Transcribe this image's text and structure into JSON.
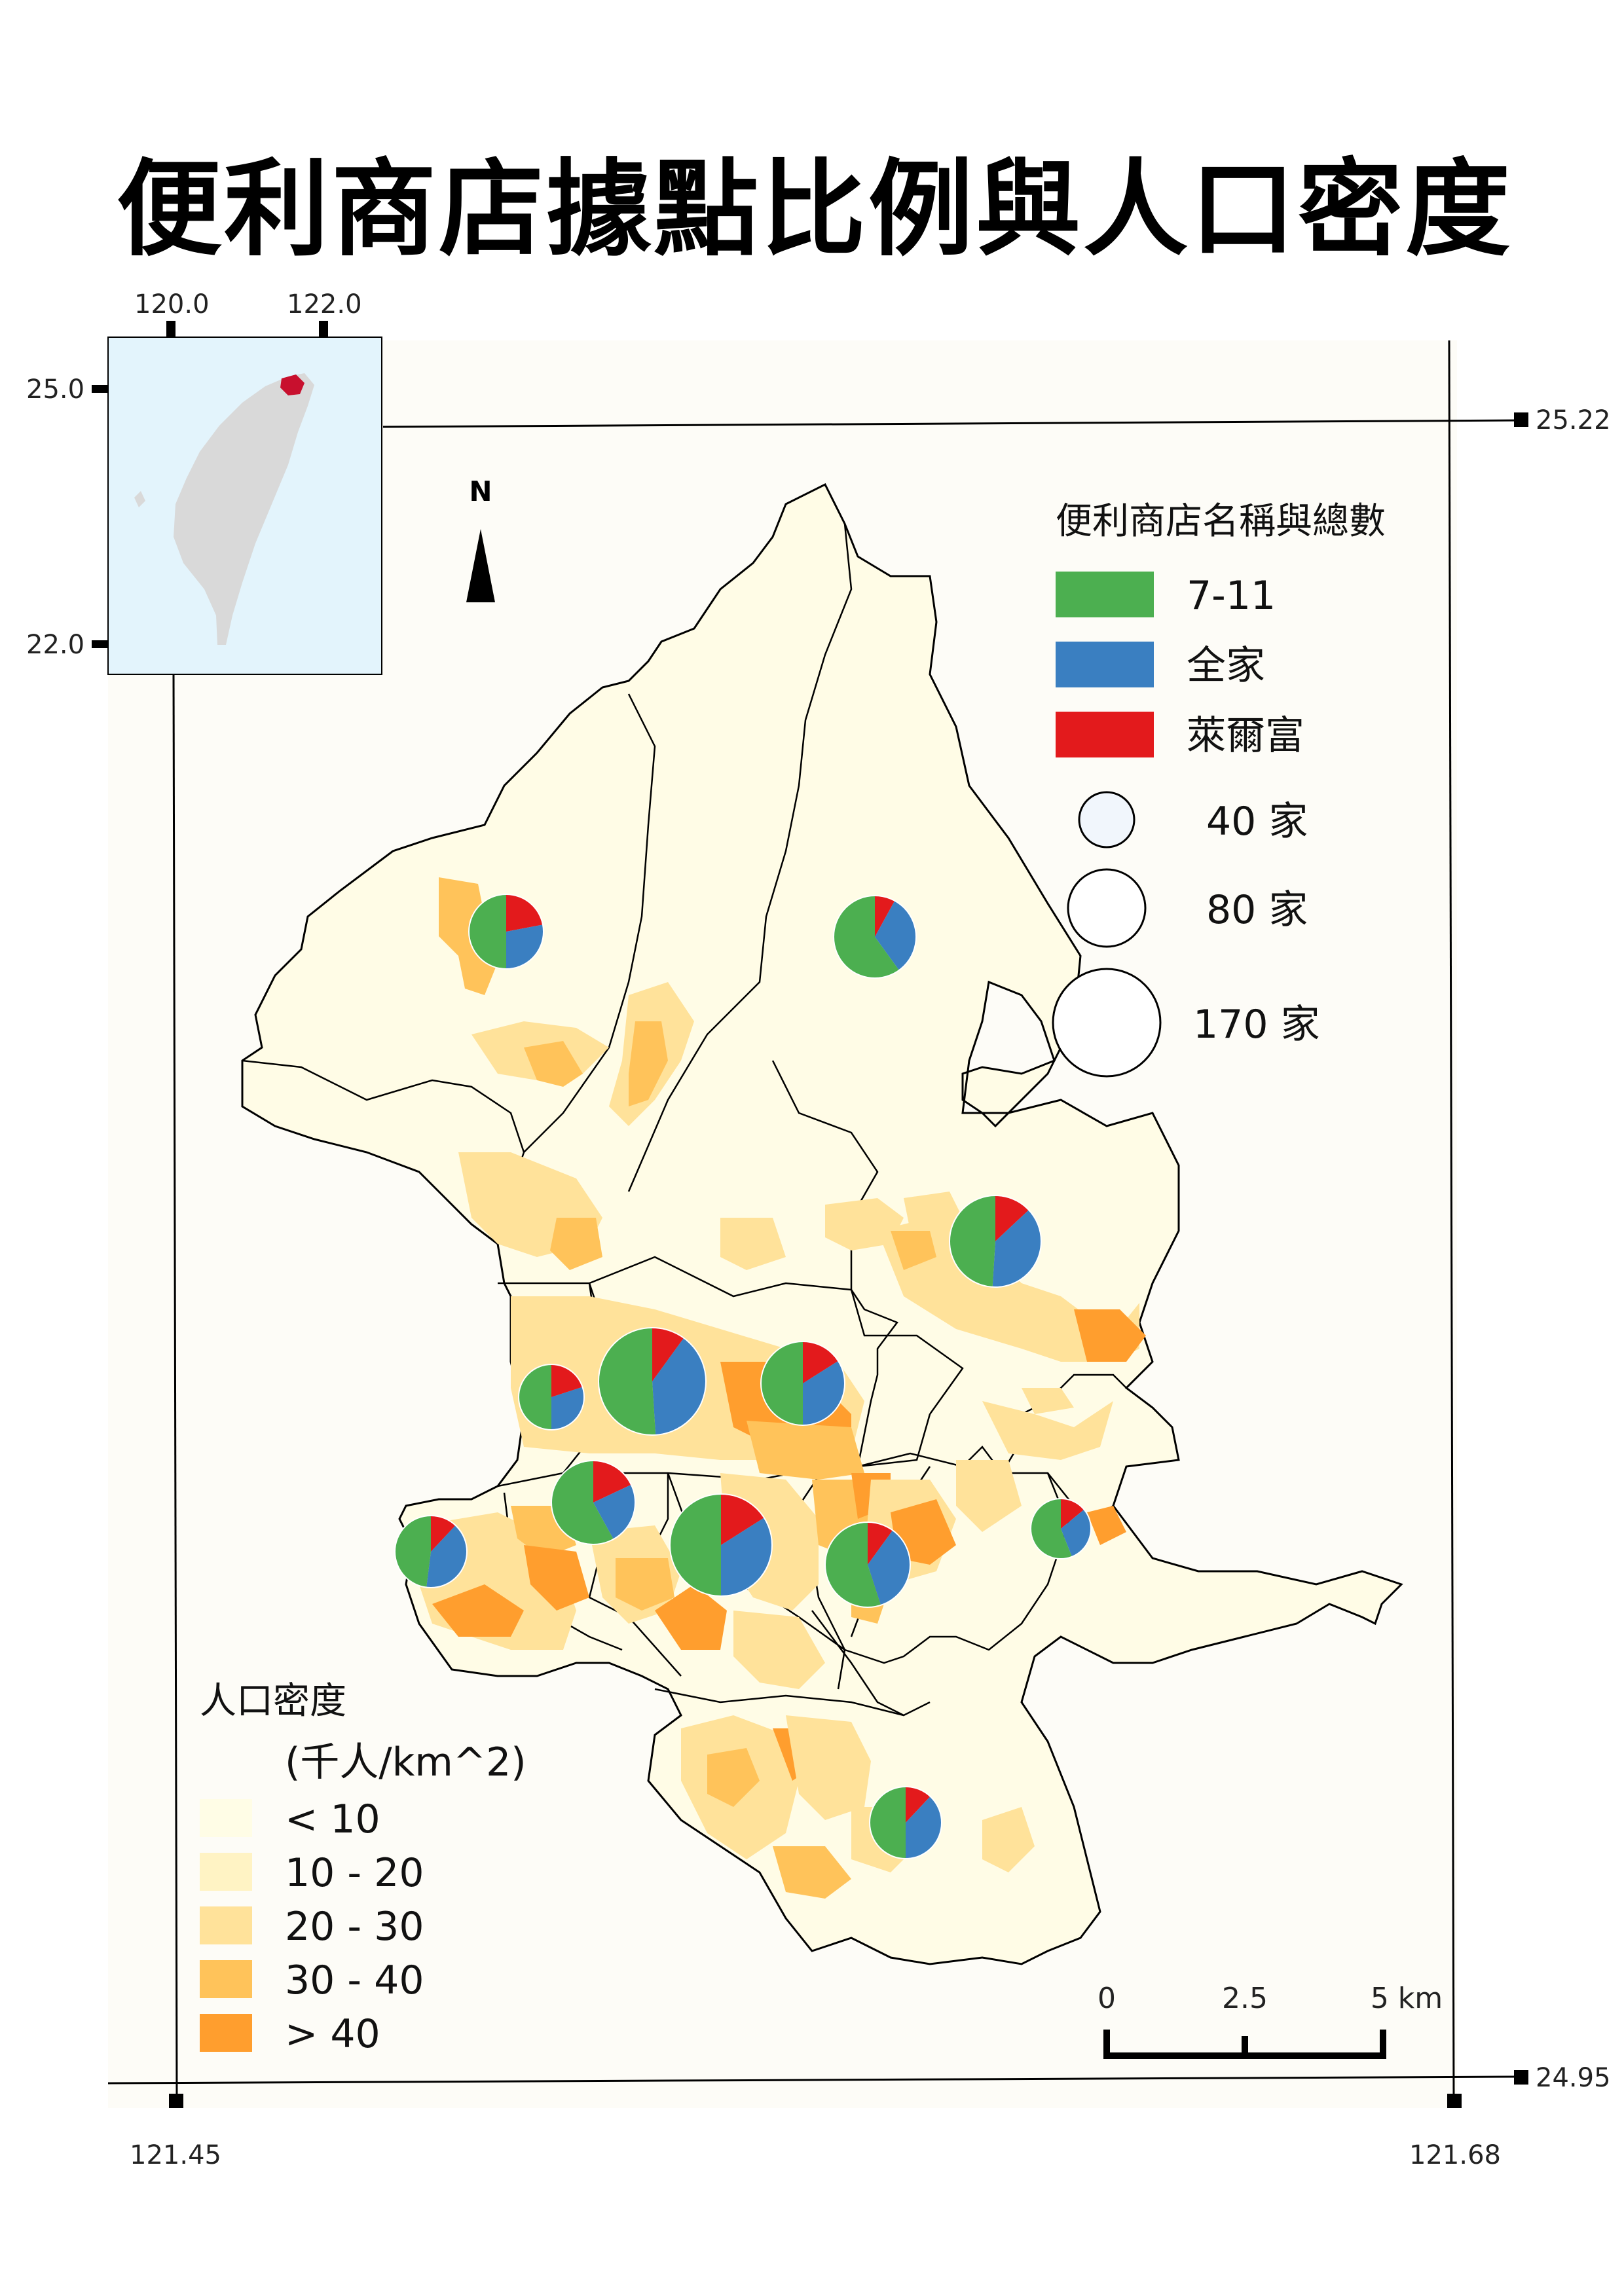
{
  "title": "便利商店據點比例與人口密度",
  "graticule": {
    "top": [
      "120.0",
      "122.0"
    ],
    "left": [
      "25.0",
      "22.0"
    ],
    "right": [
      "25.22",
      "24.95"
    ],
    "bottom": [
      "121.45",
      "121.68"
    ]
  },
  "store_legend": {
    "title": "便利商店名稱與總數",
    "brands": [
      {
        "label": "7-11",
        "color": "#4CAF50"
      },
      {
        "label": "全家",
        "color": "#3A7FC1"
      },
      {
        "label": "萊爾富",
        "color": "#E31A1C"
      }
    ],
    "sizes": [
      "40 家",
      "80 家",
      "170 家"
    ]
  },
  "density_legend": {
    "title": "人口密度",
    "unit": "(千人/km^2)",
    "classes": [
      {
        "label": "< 10",
        "color": "#FFFDE6"
      },
      {
        "label": "10 - 20",
        "color": "#FFF3C4"
      },
      {
        "label": "20 - 30",
        "color": "#FFE29A"
      },
      {
        "label": "30 - 40",
        "color": "#FFC35A"
      },
      {
        "label": "> 40",
        "color": "#FF9E2E"
      }
    ]
  },
  "scale_bar": {
    "labels": [
      "0",
      "2.5",
      "5 km"
    ]
  },
  "north_label": "N",
  "colors": {
    "border": "#000000",
    "inset_sea": "#E3F4FC",
    "inset_land": "#D9D9D9",
    "inset_highlight": "#C8102E"
  },
  "icons": {
    "north": "north-arrow-icon"
  }
}
